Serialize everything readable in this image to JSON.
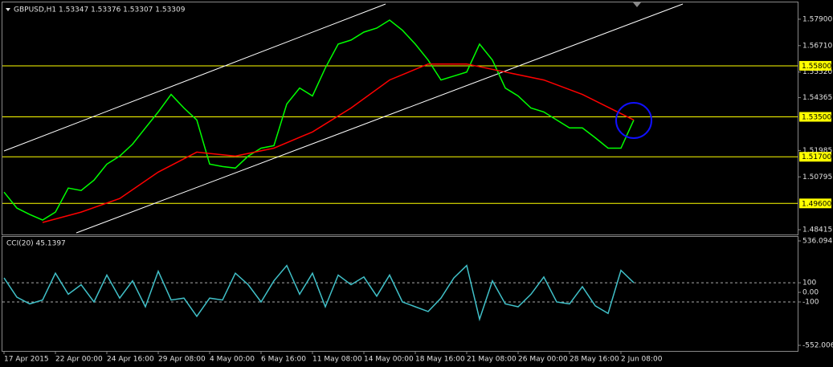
{
  "chart_data": [
    {
      "type": "line",
      "title": "GBPUSD,H1  1.53347 1.53376 1.53307 1.53309",
      "xlim": [
        0,
        61.75
      ],
      "ylim": [
        1.48271,
        1.58585
      ],
      "yticks": [
        {
          "value": 1.579,
          "label": "1.57900"
        },
        {
          "value": 1.5671,
          "label": "1.56710"
        },
        {
          "value": 1.5552,
          "label": "1.55520"
        },
        1.54365,
        1.51985,
        1.50795,
        1.48415
      ],
      "xticks": [
        {
          "value": 0,
          "label": "17 Apr 2015"
        },
        {
          "value": 4,
          "label": "22 Apr 00:00"
        },
        {
          "value": 8,
          "label": "24 Apr 16:00"
        },
        {
          "value": 12,
          "label": "29 Apr 08:00"
        },
        {
          "value": 16,
          "label": "4 May 00:00"
        },
        {
          "value": 20,
          "label": "6 May 16:00"
        },
        {
          "value": 24,
          "label": "11 May 08:00"
        },
        {
          "value": 28,
          "label": "14 May 00:00"
        },
        {
          "value": 32,
          "label": "18 May 16:00"
        },
        {
          "value": 36,
          "label": "21 May 08:00"
        },
        {
          "value": 40,
          "label": "26 May 00:00"
        },
        {
          "value": 44,
          "label": "28 May 16:00"
        },
        {
          "value": 48,
          "label": "2 Jun 08:00"
        }
      ],
      "levels": [
        {
          "value": 1.558,
          "label": "1.55800"
        },
        {
          "value": 1.535,
          "label": "1.53500"
        },
        {
          "value": 1.517,
          "label": "1.51700"
        },
        {
          "value": 1.496,
          "label": "1.49600"
        }
      ],
      "level_color": "#ffff00",
      "series": [
        {
          "color": "#00ff00",
          "x": [
            0,
            1,
            2,
            3,
            4,
            5,
            6,
            7,
            8,
            9,
            10,
            11,
            12,
            13,
            14,
            15,
            16,
            17,
            18,
            19,
            20,
            21,
            22,
            23,
            24,
            25,
            26,
            27,
            28,
            29,
            30,
            31,
            32,
            33,
            34,
            35,
            36,
            37,
            38,
            39,
            40,
            41,
            42,
            43,
            44,
            45,
            46,
            47,
            48,
            49
          ],
          "values": [
            1.5011,
            1.4939,
            1.491,
            1.4885,
            1.4921,
            1.5029,
            1.5018,
            1.5065,
            1.5137,
            1.5173,
            1.5227,
            1.53,
            1.5372,
            1.5451,
            1.539,
            1.5336,
            1.5137,
            1.5126,
            1.5119,
            1.5173,
            1.5209,
            1.522,
            1.5408,
            1.548,
            1.5444,
            1.557,
            1.5678,
            1.5696,
            1.5732,
            1.575,
            1.5786,
            1.574,
            1.5678,
            1.5606,
            1.5516,
            1.5534,
            1.5552,
            1.5678,
            1.5606,
            1.548,
            1.5444,
            1.539,
            1.5372,
            1.5336,
            1.53,
            1.53,
            1.5256,
            1.5209,
            1.5209,
            1.5336
          ]
        },
        {
          "color": "#ff0000",
          "x": [
            3,
            6,
            9,
            12,
            15,
            18,
            21,
            24,
            27,
            30,
            33,
            36,
            39,
            42,
            45,
            49
          ],
          "values": [
            1.4874,
            1.4921,
            1.4982,
            1.5101,
            1.5191,
            1.5173,
            1.5209,
            1.5282,
            1.539,
            1.5516,
            1.5588,
            1.5588,
            1.5552,
            1.5516,
            1.5451,
            1.5336
          ]
        }
      ]
    },
    {
      "type": "line",
      "title": "CCI(20) 45.1397",
      "ylim": [
        -552.0064,
        536.0942
      ],
      "yticks": [
        536.0942,
        100,
        {
          "value": 0,
          "label": "0.00"
        },
        -100,
        -552.0064
      ],
      "levels": [
        100,
        -100
      ],
      "series": [
        {
          "color": "#40c0c8",
          "x": [
            0,
            1,
            2,
            3,
            4,
            5,
            6,
            7,
            8,
            9,
            10,
            11,
            12,
            13,
            14,
            15,
            16,
            17,
            18,
            19,
            20,
            21,
            22,
            23,
            24,
            25,
            26,
            27,
            28,
            29,
            30,
            31,
            32,
            33,
            34,
            35,
            36,
            37,
            38,
            39,
            40,
            41,
            42,
            43,
            44,
            45,
            46,
            47,
            48,
            49
          ],
          "values": [
            150,
            -50,
            -120,
            -80,
            200,
            -20,
            80,
            -100,
            180,
            -60,
            120,
            -150,
            220,
            -80,
            -60,
            -250,
            -60,
            -80,
            200,
            80,
            -100,
            120,
            280,
            -20,
            200,
            -150,
            180,
            80,
            160,
            -40,
            180,
            -100,
            -150,
            -200,
            -60,
            150,
            280,
            -280,
            120,
            -120,
            -150,
            -20,
            160,
            -100,
            -120,
            60,
            -140,
            -220,
            230,
            100
          ]
        }
      ]
    }
  ]
}
